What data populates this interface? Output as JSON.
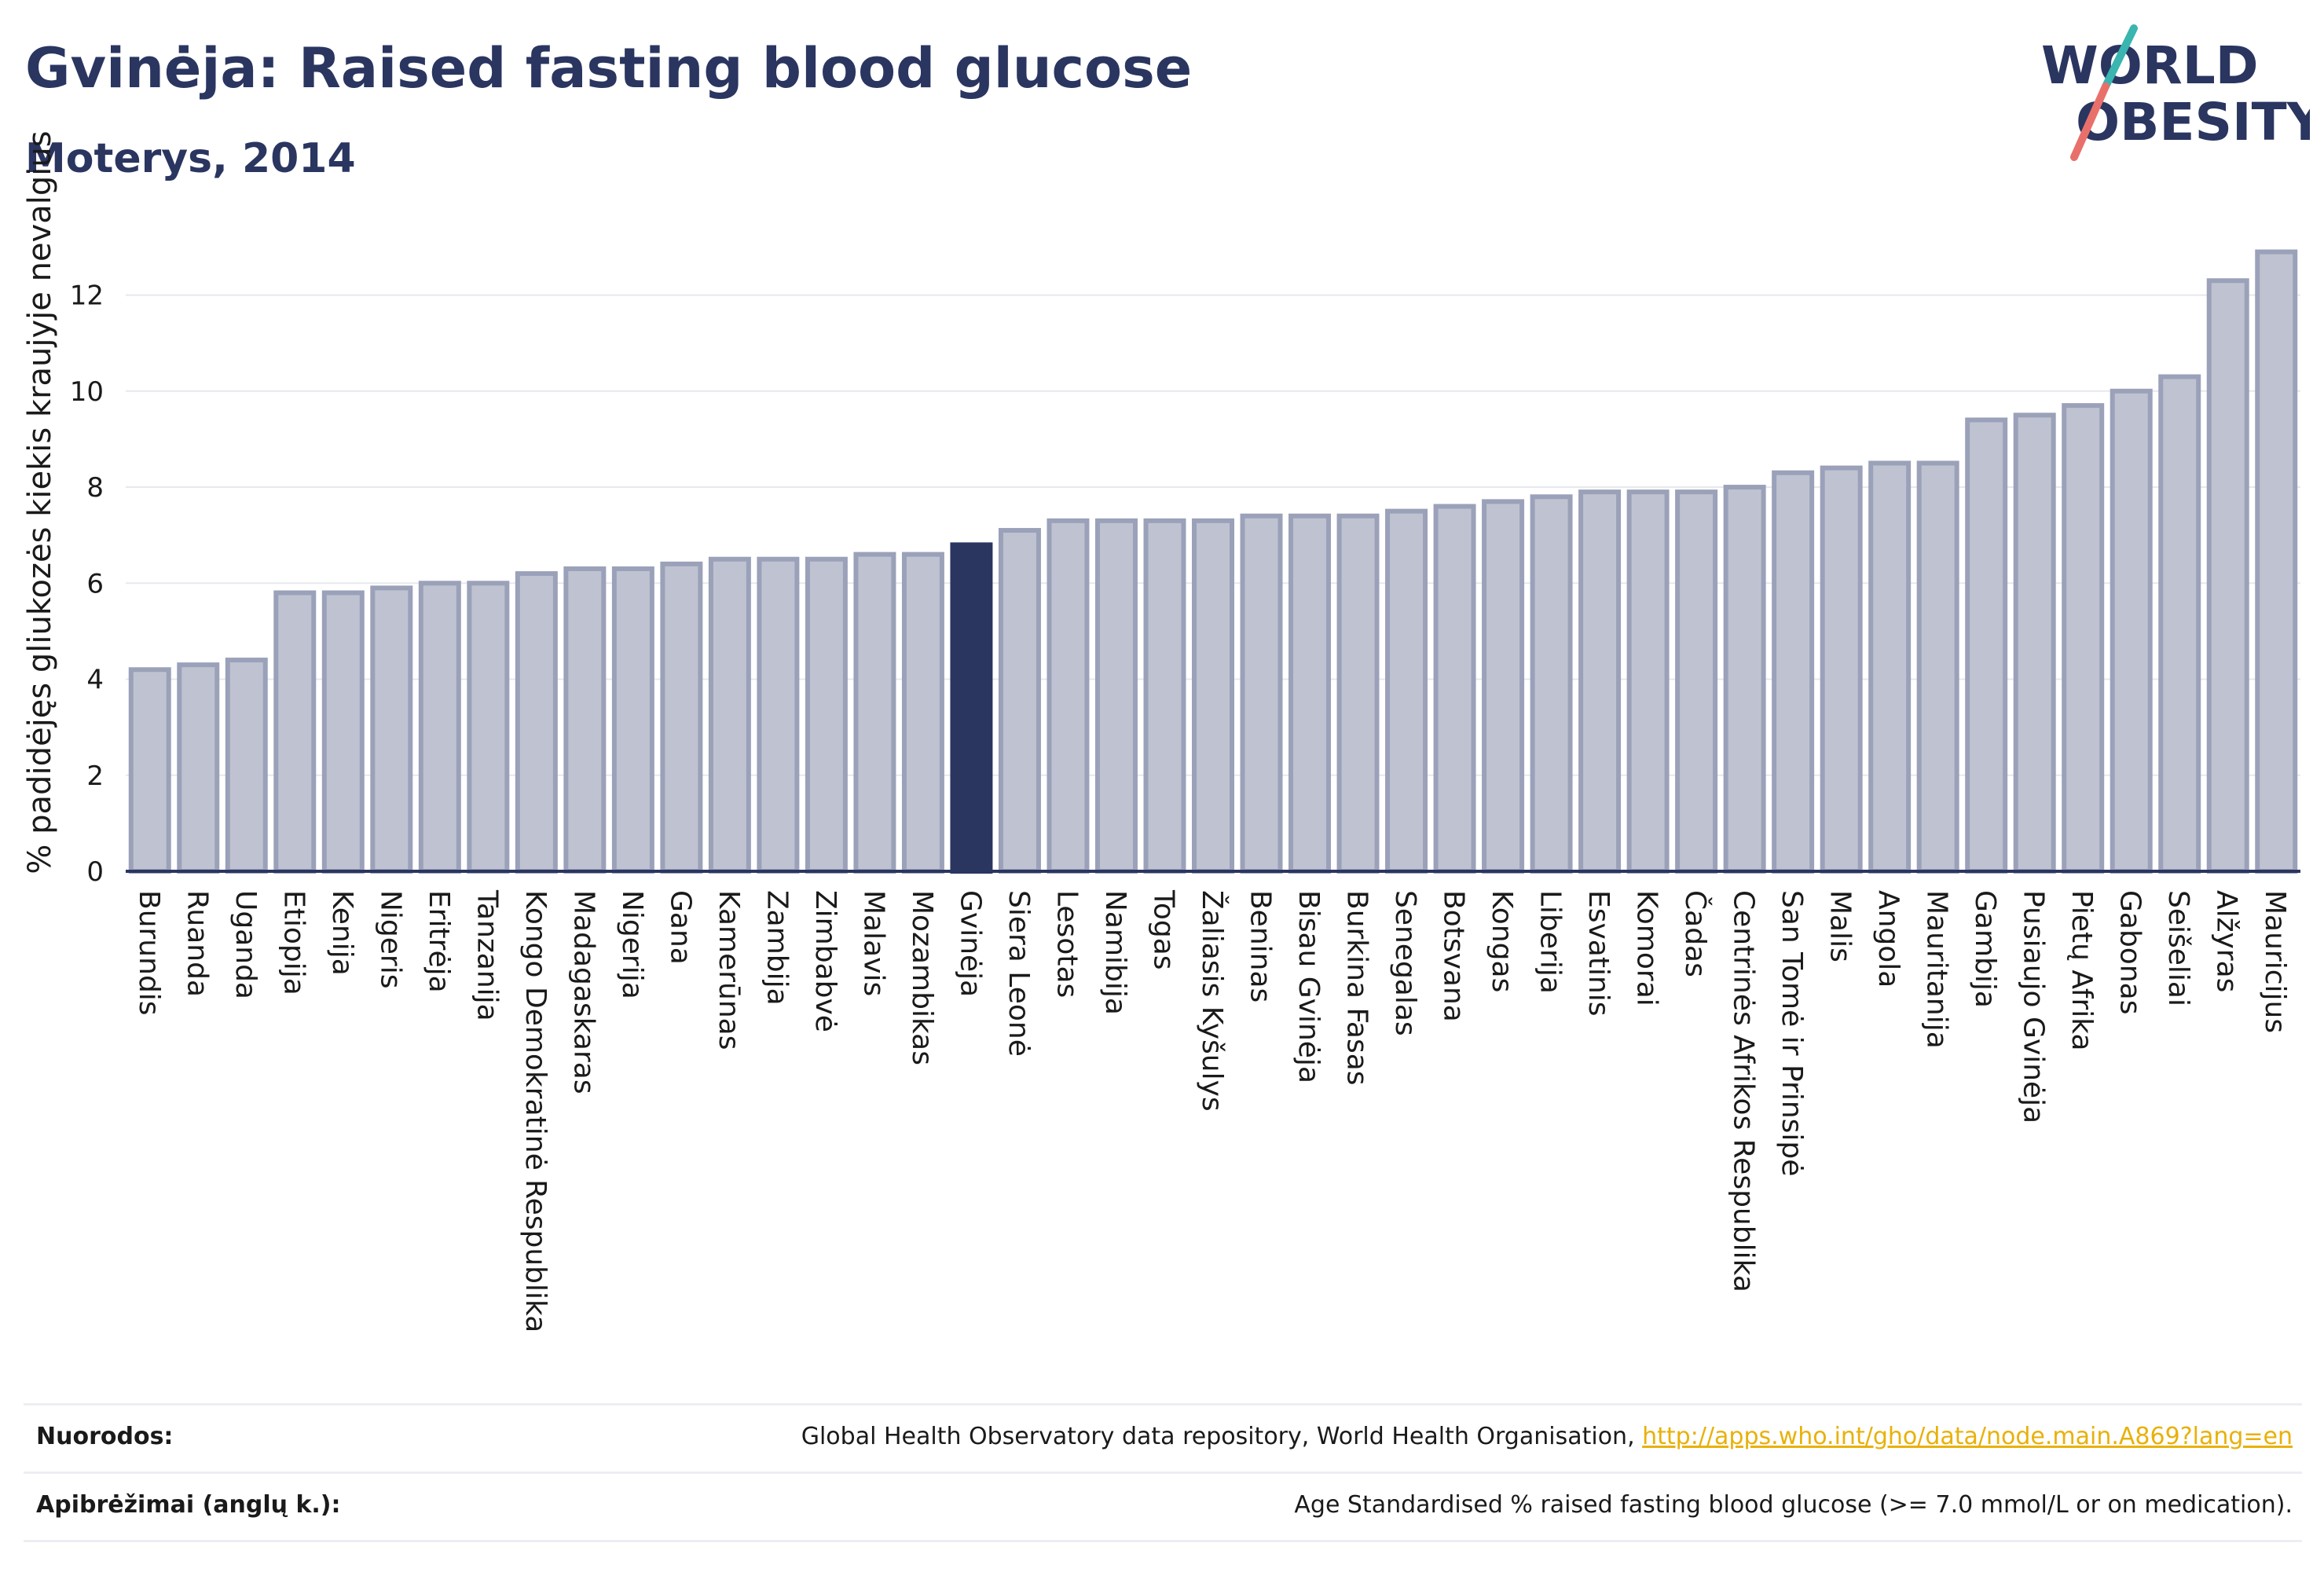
{
  "header": {
    "title": "Gvinėja: Raised fasting blood glucose",
    "subtitle": "Moterys, 2014"
  },
  "logo": {
    "line1": "WORLD",
    "line2": "OBESITY"
  },
  "colors": {
    "bar": "#bfc3d1",
    "bar_edge": "#9aa1b9",
    "highlight": "#2a3560",
    "grid": "#e6e8ee",
    "axis": "#2a3560",
    "logo_text": "#2a3560",
    "logo_teal": "#3ab5b0",
    "logo_coral": "#e9706a",
    "link": "#e8b10a"
  },
  "chart_data": {
    "type": "bar",
    "ylabel": "% padidėjęs gliukozės kiekis kraujyje nevalgius",
    "xlabel": "",
    "ylim": [
      0,
      13.4
    ],
    "yticks": [
      0,
      2,
      4,
      6,
      8,
      10,
      12
    ],
    "highlight": "Gvinėja",
    "categories": [
      "Burundis",
      "Ruanda",
      "Uganda",
      "Etiopija",
      "Kenija",
      "Nigeris",
      "Eritrėja",
      "Tanzanija",
      "Kongo Demokratinė Respublika",
      "Madagaskaras",
      "Nigerija",
      "Gana",
      "Kamerūnas",
      "Zambija",
      "Zimbabvė",
      "Malavis",
      "Mozambikas",
      "Gvinėja",
      "Siera Leonė",
      "Lesotas",
      "Namibija",
      "Togas",
      "Žaliasis Kyšulys",
      "Beninas",
      "Bisau Gvinėja",
      "Burkina Fasas",
      "Senegalas",
      "Botsvana",
      "Kongas",
      "Liberija",
      "Esvatinis",
      "Komorai",
      "Čadas",
      "Centrinės Afrikos Respublika",
      "San Tomė ir Prinsipė",
      "Malis",
      "Angola",
      "Mauritanija",
      "Gambija",
      "Pusiaujo Gvinėja",
      "Pietų Afrika",
      "Gabonas",
      "Seišeliai",
      "Alžyras",
      "Mauricijus"
    ],
    "values": [
      4.2,
      4.3,
      4.4,
      5.8,
      5.8,
      5.9,
      6.0,
      6.0,
      6.2,
      6.3,
      6.3,
      6.4,
      6.5,
      6.5,
      6.5,
      6.6,
      6.6,
      6.8,
      7.1,
      7.3,
      7.3,
      7.3,
      7.3,
      7.4,
      7.4,
      7.4,
      7.5,
      7.6,
      7.7,
      7.8,
      7.9,
      7.9,
      7.9,
      8.0,
      8.3,
      8.4,
      8.5,
      8.5,
      9.4,
      9.5,
      9.7,
      10.0,
      10.3,
      12.3,
      12.9
    ]
  },
  "footer": {
    "sources_label": "Nuorodos:",
    "sources_text": "Global Health Observatory data repository, World Health Organisation, ",
    "sources_link": "http://apps.who.int/gho/data/node.main.A869?lang=en",
    "definitions_label": "Apibrėžimai (anglų k.):",
    "definitions_text": "Age Standardised % raised fasting blood glucose (>= 7.0 mmol/L or on medication)."
  }
}
